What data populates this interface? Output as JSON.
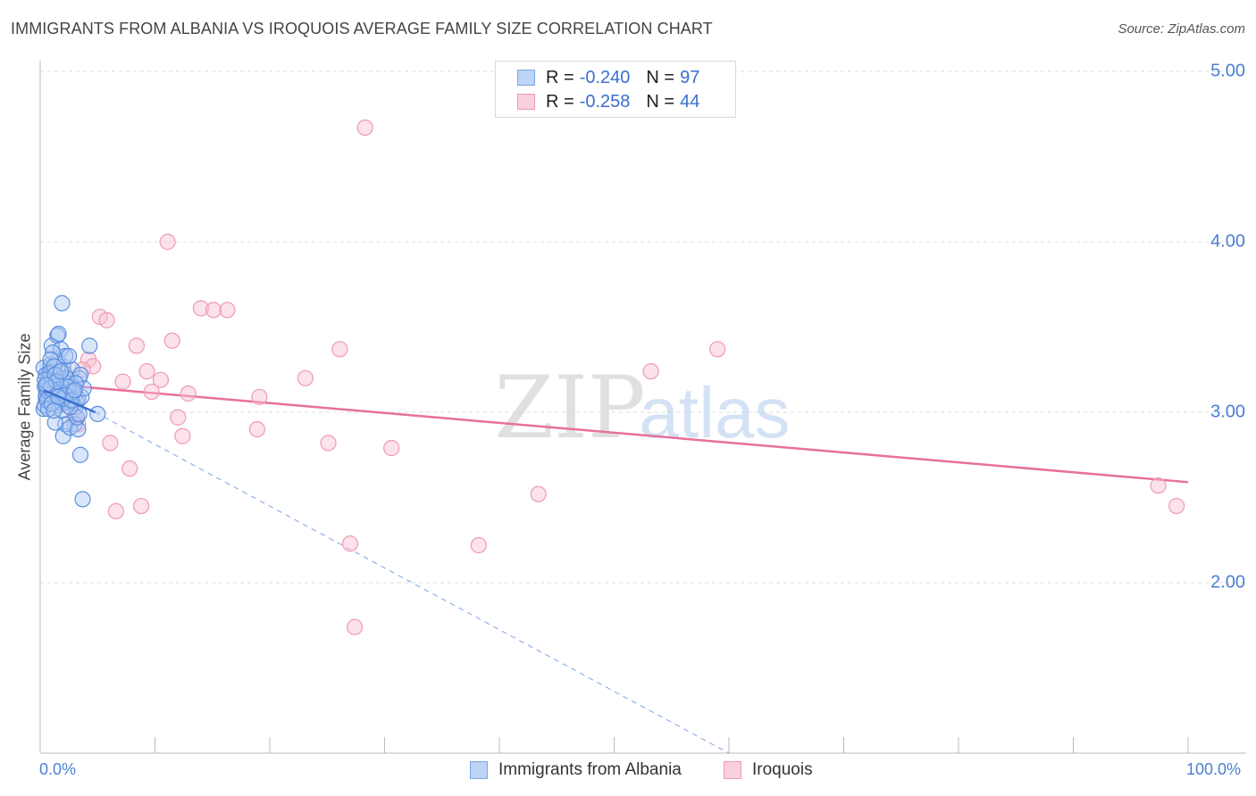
{
  "title": "IMMIGRANTS FROM ALBANIA VS IROQUOIS AVERAGE FAMILY SIZE CORRELATION CHART",
  "source": "Source: ZipAtlas.com",
  "watermark": {
    "zip": "ZIP",
    "atlas": "atlas"
  },
  "legend": {
    "r_label": "R =",
    "n_label": "N =",
    "series": [
      {
        "name": "Immigrants from Albania",
        "r": "-0.240",
        "n": "97",
        "fill": "#bcd4f5",
        "stroke": "#7aa6e6"
      },
      {
        "name": "Iroquois",
        "r": "-0.258",
        "n": "44",
        "fill": "#fad0dc",
        "stroke": "#ee9ab3"
      }
    ]
  },
  "chart_data": {
    "type": "scatter",
    "title": "IMMIGRANTS FROM ALBANIA VS IROQUOIS AVERAGE FAMILY SIZE CORRELATION CHART",
    "xlabel": "",
    "ylabel": "Average Family Size",
    "xlim": [
      0,
      100
    ],
    "ylim": [
      1.0,
      5.1
    ],
    "x_tick_labels": [
      "0.0%",
      "100.0%"
    ],
    "y_ticks": [
      2.0,
      3.0,
      4.0,
      5.0
    ],
    "y_tick_labels": [
      "2.00",
      "3.00",
      "4.00",
      "5.00"
    ],
    "series": [
      {
        "name": "Immigrants from Albania",
        "color": "#4a7fd4",
        "points": [
          [
            0.3,
            3.26
          ],
          [
            0.5,
            3.22
          ],
          [
            0.6,
            3.18
          ],
          [
            0.4,
            3.15
          ],
          [
            0.7,
            3.12
          ],
          [
            0.5,
            3.08
          ],
          [
            0.8,
            3.05
          ],
          [
            0.3,
            3.02
          ],
          [
            0.9,
            3.28
          ],
          [
            1.0,
            3.24
          ],
          [
            1.1,
            3.2
          ],
          [
            0.6,
            3.16
          ],
          [
            1.2,
            3.13
          ],
          [
            0.8,
            3.1
          ],
          [
            1.3,
            3.07
          ],
          [
            0.4,
            3.04
          ],
          [
            1.5,
            3.3
          ],
          [
            1.6,
            3.21
          ],
          [
            1.4,
            3.17
          ],
          [
            1.7,
            3.14
          ],
          [
            1.8,
            3.11
          ],
          [
            1.2,
            3.08
          ],
          [
            1.9,
            3.05
          ],
          [
            1.0,
            3.19
          ],
          [
            2.0,
            3.27
          ],
          [
            2.1,
            3.23
          ],
          [
            2.2,
            3.16
          ],
          [
            2.3,
            3.12
          ],
          [
            2.4,
            3.09
          ],
          [
            2.5,
            3.06
          ],
          [
            2.6,
            3.19
          ],
          [
            2.0,
            3.14
          ],
          [
            2.8,
            3.25
          ],
          [
            3.0,
            3.1
          ],
          [
            3.2,
            3.06
          ],
          [
            2.9,
            3.15
          ],
          [
            3.4,
            3.2
          ],
          [
            3.1,
            3.03
          ],
          [
            2.7,
            3.11
          ],
          [
            3.3,
            3.08
          ],
          [
            1.0,
            3.39
          ],
          [
            1.5,
            3.45
          ],
          [
            1.8,
            3.37
          ],
          [
            2.2,
            3.33
          ],
          [
            1.1,
            3.35
          ],
          [
            1.6,
            3.46
          ],
          [
            0.9,
            3.31
          ],
          [
            2.5,
            3.33
          ],
          [
            4.3,
            3.39
          ],
          [
            1.9,
            3.64
          ],
          [
            3.5,
            3.22
          ],
          [
            3.6,
            3.09
          ],
          [
            3.8,
            3.14
          ],
          [
            3.0,
            2.93
          ],
          [
            2.0,
            2.86
          ],
          [
            2.2,
            2.93
          ],
          [
            1.3,
            2.94
          ],
          [
            2.6,
            2.91
          ],
          [
            3.3,
            2.9
          ],
          [
            3.2,
            2.97
          ],
          [
            3.4,
            2.99
          ],
          [
            5.0,
            2.99
          ],
          [
            3.5,
            2.75
          ],
          [
            3.7,
            2.49
          ],
          [
            0.5,
            3.1
          ],
          [
            0.6,
            3.13
          ],
          [
            0.7,
            3.17
          ],
          [
            0.9,
            3.21
          ],
          [
            1.1,
            3.09
          ],
          [
            1.4,
            3.06
          ],
          [
            1.7,
            3.12
          ],
          [
            2.1,
            3.18
          ],
          [
            0.8,
            3.23
          ],
          [
            1.2,
            3.27
          ],
          [
            1.5,
            3.04
          ],
          [
            1.9,
            3.01
          ],
          [
            2.3,
            3.2
          ],
          [
            2.6,
            3.03
          ],
          [
            3.1,
            3.17
          ],
          [
            0.4,
            3.19
          ],
          [
            0.6,
            3.07
          ],
          [
            0.9,
            3.14
          ],
          [
            1.3,
            3.22
          ],
          [
            1.6,
            3.11
          ],
          [
            2.0,
            3.08
          ],
          [
            2.4,
            3.15
          ],
          [
            2.9,
            3.12
          ],
          [
            0.7,
            3.02
          ],
          [
            1.0,
            3.05
          ],
          [
            1.4,
            3.18
          ],
          [
            1.8,
            3.24
          ],
          [
            2.2,
            3.1
          ],
          [
            2.7,
            3.07
          ],
          [
            3.0,
            3.13
          ],
          [
            0.5,
            3.16
          ],
          [
            1.2,
            3.01
          ],
          [
            1.6,
            3.09
          ]
        ],
        "trend": {
          "x": [
            0.3,
            4.8
          ],
          "y": [
            3.13,
            3.0
          ]
        },
        "trend_extended": {
          "x": [
            4.8,
            60.0
          ],
          "y": [
            3.0,
            1.0
          ]
        }
      },
      {
        "name": "Iroquois",
        "color": "#e8709a",
        "points": [
          [
            28.3,
            4.67
          ],
          [
            11.1,
            4.0
          ],
          [
            14.0,
            3.61
          ],
          [
            15.1,
            3.6
          ],
          [
            16.3,
            3.6
          ],
          [
            5.2,
            3.56
          ],
          [
            5.8,
            3.54
          ],
          [
            11.5,
            3.42
          ],
          [
            8.4,
            3.39
          ],
          [
            26.1,
            3.37
          ],
          [
            59.0,
            3.37
          ],
          [
            4.2,
            3.31
          ],
          [
            4.6,
            3.27
          ],
          [
            3.7,
            3.25
          ],
          [
            9.3,
            3.24
          ],
          [
            53.2,
            3.24
          ],
          [
            23.1,
            3.2
          ],
          [
            7.2,
            3.18
          ],
          [
            10.5,
            3.19
          ],
          [
            9.7,
            3.12
          ],
          [
            12.9,
            3.11
          ],
          [
            19.1,
            3.09
          ],
          [
            0.5,
            3.1
          ],
          [
            1.0,
            3.07
          ],
          [
            2.3,
            3.04
          ],
          [
            1.5,
            3.05
          ],
          [
            3.0,
            2.97
          ],
          [
            3.3,
            2.93
          ],
          [
            12.0,
            2.97
          ],
          [
            18.9,
            2.9
          ],
          [
            12.4,
            2.86
          ],
          [
            6.1,
            2.82
          ],
          [
            25.1,
            2.82
          ],
          [
            30.6,
            2.79
          ],
          [
            7.8,
            2.67
          ],
          [
            43.4,
            2.52
          ],
          [
            97.4,
            2.57
          ],
          [
            99.0,
            2.45
          ],
          [
            8.8,
            2.45
          ],
          [
            6.6,
            2.42
          ],
          [
            27.0,
            2.23
          ],
          [
            38.2,
            2.22
          ],
          [
            27.4,
            1.74
          ],
          [
            0.8,
            3.13
          ]
        ],
        "trend": {
          "x": [
            0.0,
            100.0
          ],
          "y": [
            3.17,
            2.59
          ]
        }
      }
    ]
  }
}
